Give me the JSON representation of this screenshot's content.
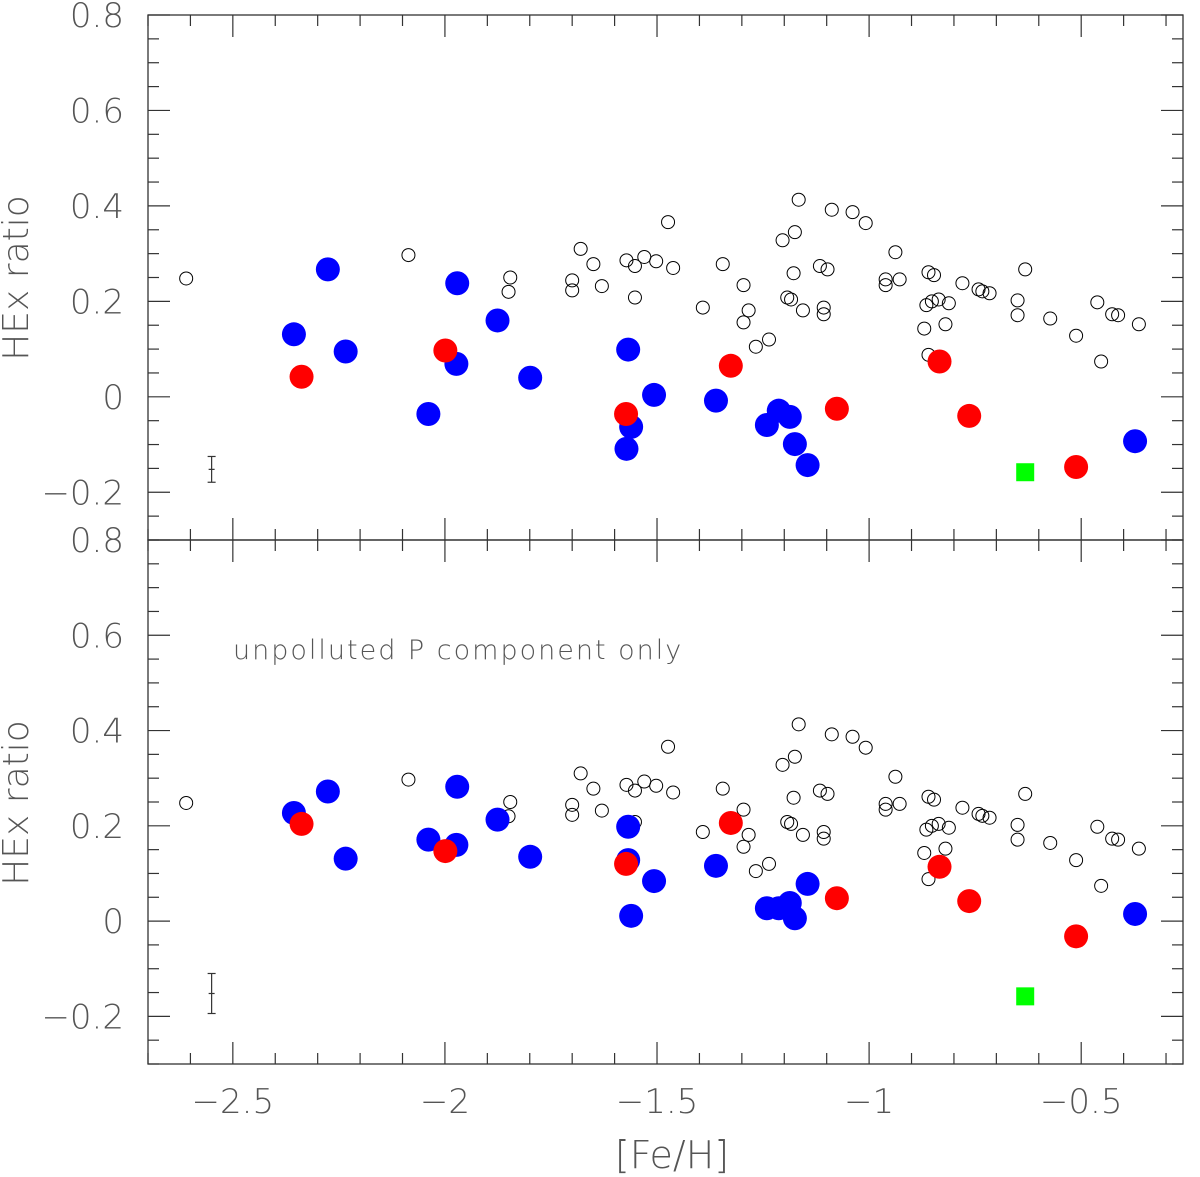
{
  "chart_data": [
    {
      "type": "scatter",
      "panel": "top",
      "xlabel": "[Fe/H]",
      "ylabel": "HEx ratio",
      "annotation": "",
      "xlim": [
        -2.7,
        -0.26
      ],
      "ylim": [
        -0.3,
        0.8
      ],
      "xticks": [
        -2.5,
        -2,
        -1.5,
        -1,
        -0.5
      ],
      "xtick_labels": [
        "−2.5",
        "−2",
        "−1.5",
        "−1",
        "−0.5"
      ],
      "yticks": [
        -0.2,
        0,
        0.2,
        0.4,
        0.6,
        0.8
      ],
      "ytick_labels": [
        "−0.2",
        "0",
        "0.2",
        "0.4",
        "0.6",
        "0.8"
      ],
      "grid": false,
      "errorbar": {
        "x": -2.55,
        "y": -0.152,
        "err": 0.027
      },
      "series": [
        {
          "marker": "open-circle",
          "color": "#000000",
          "points": "open"
        },
        {
          "marker": "filled-circle",
          "color": "#0000ff",
          "points": [
            [
              -2.356,
              0.131
            ],
            [
              -2.276,
              0.267
            ],
            [
              -2.234,
              0.095
            ],
            [
              -2.039,
              -0.036
            ],
            [
              -1.971,
              0.238
            ],
            [
              -1.973,
              0.069
            ],
            [
              -1.876,
              0.16
            ],
            [
              -1.799,
              0.04
            ],
            [
              -1.568,
              0.099
            ],
            [
              -1.561,
              -0.063
            ],
            [
              -1.572,
              -0.109
            ],
            [
              -1.507,
              0.004
            ],
            [
              -1.361,
              -0.008
            ],
            [
              -1.241,
              -0.059
            ],
            [
              -1.213,
              -0.029
            ],
            [
              -1.187,
              -0.042
            ],
            [
              -1.175,
              -0.099
            ],
            [
              -1.145,
              -0.143
            ],
            [
              -0.373,
              -0.093
            ]
          ]
        },
        {
          "marker": "filled-circle",
          "color": "#ff0000",
          "points": [
            [
              -2.338,
              0.042
            ],
            [
              -1.999,
              0.097
            ],
            [
              -1.573,
              -0.036
            ],
            [
              -1.326,
              0.065
            ],
            [
              -1.076,
              -0.025
            ],
            [
              -0.834,
              0.074
            ],
            [
              -0.764,
              -0.04
            ],
            [
              -0.512,
              -0.147
            ]
          ]
        },
        {
          "marker": "filled-square",
          "color": "#00ff00",
          "points": [
            [
              -0.632,
              -0.158
            ]
          ]
        }
      ]
    },
    {
      "type": "scatter",
      "panel": "bottom",
      "xlabel": "[Fe/H]",
      "ylabel": "HEx ratio",
      "annotation": "unpolluted P component only",
      "xlim": [
        -2.7,
        -0.26
      ],
      "ylim": [
        -0.3,
        0.8
      ],
      "xticks": [
        -2.5,
        -2,
        -1.5,
        -1,
        -0.5
      ],
      "xtick_labels": [
        "−2.5",
        "−2",
        "−1.5",
        "−1",
        "−0.5"
      ],
      "yticks": [
        -0.2,
        0,
        0.2,
        0.4,
        0.6,
        0.8
      ],
      "ytick_labels": [
        "−0.2",
        "0",
        "0.2",
        "0.4",
        "0.6",
        "0.8"
      ],
      "grid": false,
      "errorbar": {
        "x": -2.55,
        "y": -0.152,
        "err": 0.042
      },
      "series": [
        {
          "marker": "open-circle",
          "color": "#000000",
          "points": "open"
        },
        {
          "marker": "filled-circle",
          "color": "#0000ff",
          "points": [
            [
              -2.356,
              0.227
            ],
            [
              -2.276,
              0.272
            ],
            [
              -2.234,
              0.131
            ],
            [
              -2.039,
              0.171
            ],
            [
              -1.971,
              0.282
            ],
            [
              -1.973,
              0.16
            ],
            [
              -1.876,
              0.213
            ],
            [
              -1.799,
              0.135
            ],
            [
              -1.568,
              0.198
            ],
            [
              -1.568,
              0.128
            ],
            [
              -1.561,
              0.011
            ],
            [
              -1.507,
              0.084
            ],
            [
              -1.361,
              0.116
            ],
            [
              -1.241,
              0.027
            ],
            [
              -1.213,
              0.027
            ],
            [
              -1.187,
              0.038
            ],
            [
              -1.175,
              0.006
            ],
            [
              -1.145,
              0.078
            ],
            [
              -0.373,
              0.015
            ]
          ]
        },
        {
          "marker": "filled-circle",
          "color": "#ff0000",
          "points": [
            [
              -2.338,
              0.204
            ],
            [
              -1.999,
              0.147
            ],
            [
              -1.573,
              0.12
            ],
            [
              -1.326,
              0.206
            ],
            [
              -1.076,
              0.048
            ],
            [
              -0.834,
              0.114
            ],
            [
              -0.764,
              0.042
            ],
            [
              -0.512,
              -0.032
            ]
          ]
        },
        {
          "marker": "filled-square",
          "color": "#00ff00",
          "points": [
            [
              -0.632,
              -0.158
            ]
          ]
        }
      ]
    }
  ],
  "open_points": [
    [
      -2.61,
      0.248
    ],
    [
      -2.086,
      0.297
    ],
    [
      -1.846,
      0.25
    ],
    [
      -1.85,
      0.22
    ],
    [
      -1.68,
      0.31
    ],
    [
      -1.7,
      0.244
    ],
    [
      -1.7,
      0.223
    ],
    [
      -1.65,
      0.278
    ],
    [
      -1.63,
      0.232
    ],
    [
      -1.572,
      0.286
    ],
    [
      -1.552,
      0.274
    ],
    [
      -1.53,
      0.293
    ],
    [
      -1.502,
      0.284
    ],
    [
      -1.474,
      0.366
    ],
    [
      -1.462,
      0.27
    ],
    [
      -1.552,
      0.208
    ],
    [
      -1.392,
      0.187
    ],
    [
      -1.345,
      0.278
    ],
    [
      -1.296,
      0.234
    ],
    [
      -1.284,
      0.181
    ],
    [
      -1.296,
      0.156
    ],
    [
      -1.267,
      0.105
    ],
    [
      -1.236,
      0.12
    ],
    [
      -1.204,
      0.328
    ],
    [
      -1.175,
      0.345
    ],
    [
      -1.166,
      0.413
    ],
    [
      -1.178,
      0.259
    ],
    [
      -1.193,
      0.208
    ],
    [
      -1.184,
      0.204
    ],
    [
      -1.156,
      0.181
    ],
    [
      -1.116,
      0.274
    ],
    [
      -1.098,
      0.267
    ],
    [
      -1.107,
      0.187
    ],
    [
      -1.107,
      0.173
    ],
    [
      -1.088,
      0.392
    ],
    [
      -1.039,
      0.387
    ],
    [
      -1.008,
      0.364
    ],
    [
      -0.961,
      0.246
    ],
    [
      -0.961,
      0.234
    ],
    [
      -0.938,
      0.303
    ],
    [
      -0.928,
      0.246
    ],
    [
      -0.86,
      0.261
    ],
    [
      -0.847,
      0.255
    ],
    [
      -0.865,
      0.192
    ],
    [
      -0.852,
      0.2
    ],
    [
      -0.836,
      0.204
    ],
    [
      -0.812,
      0.196
    ],
    [
      -0.87,
      0.143
    ],
    [
      -0.82,
      0.152
    ],
    [
      -0.86,
      0.088
    ],
    [
      -0.78,
      0.238
    ],
    [
      -0.742,
      0.225
    ],
    [
      -0.733,
      0.221
    ],
    [
      -0.716,
      0.217
    ],
    [
      -0.65,
      0.202
    ],
    [
      -0.65,
      0.171
    ],
    [
      -0.632,
      0.267
    ],
    [
      -0.573,
      0.164
    ],
    [
      -0.512,
      0.128
    ],
    [
      -0.462,
      0.198
    ],
    [
      -0.453,
      0.074
    ],
    [
      -0.427,
      0.173
    ],
    [
      -0.413,
      0.171
    ],
    [
      -0.364,
      0.152
    ]
  ]
}
